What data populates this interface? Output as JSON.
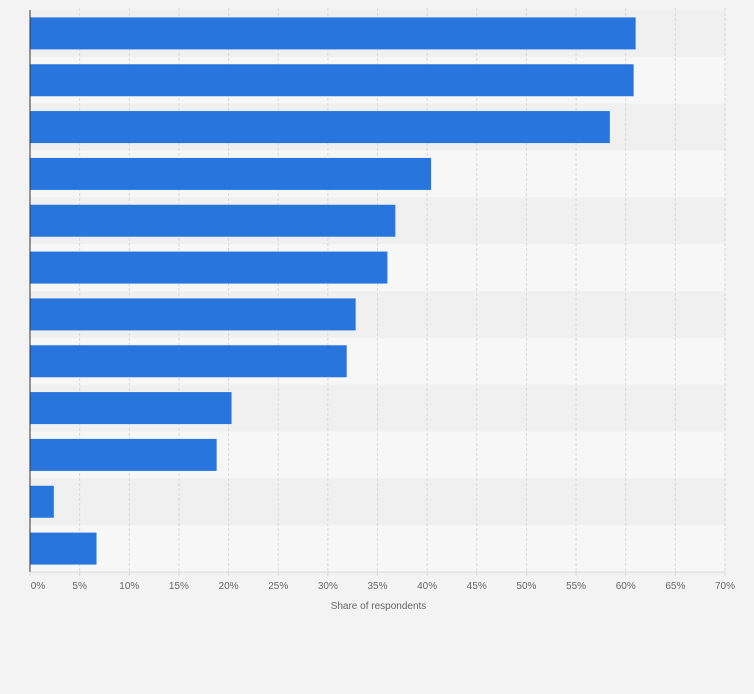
{
  "chart_data": {
    "type": "bar",
    "orientation": "horizontal",
    "title": "",
    "xlabel": "Share of respondents",
    "ylabel": "",
    "categories": [
      "",
      "",
      "",
      "",
      "",
      "",
      "",
      "",
      "",
      "",
      "",
      ""
    ],
    "values": [
      61,
      60.8,
      58.4,
      40.4,
      36.8,
      36,
      32.8,
      31.9,
      20.3,
      18.8,
      2.4,
      6.7
    ],
    "xlim": [
      0,
      70
    ],
    "x_ticks": [
      0,
      5,
      10,
      15,
      20,
      25,
      30,
      35,
      40,
      45,
      50,
      55,
      60,
      65,
      70
    ],
    "x_tick_labels": [
      "0%",
      "5%",
      "10%",
      "15%",
      "20%",
      "25%",
      "30%",
      "35%",
      "40%",
      "45%",
      "50%",
      "55%",
      "60%",
      "65%",
      "70%"
    ],
    "grid": true,
    "legend": "none",
    "colors": {
      "bar": "#2876dd",
      "band_light": "#f7f7f7",
      "band_dark": "#f0f0f0",
      "grid": "#d9d9d9",
      "axis": "#333333",
      "tick_text": "#666666",
      "background": "#f3f3f3"
    }
  }
}
